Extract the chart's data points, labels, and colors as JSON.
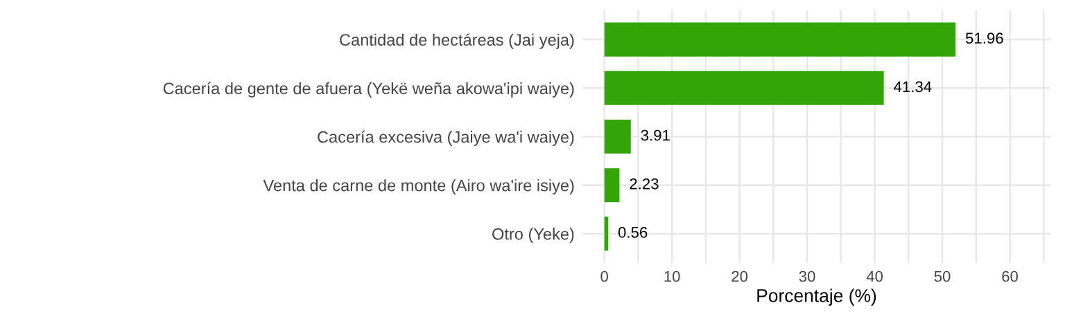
{
  "chart_data": {
    "type": "bar",
    "orientation": "horizontal",
    "xlabel": "Porcentaje (%)",
    "categories": [
      "Cantidad de hectáreas (Jai yeja)",
      "Cacería de gente de afuera (Yekë weña akowa'ipi waiye)",
      "Cacería excesiva (Jaiye wa'i waiye)",
      "Venta de carne de monte (Airo wa'ire isiye)",
      "Otro (Yeke)"
    ],
    "values": [
      51.96,
      41.34,
      3.91,
      2.23,
      0.56
    ],
    "color": "#33a506",
    "data_labels": true,
    "xlim": [
      -3.25,
      66
    ],
    "xticks": [
      0,
      {
        "value": 5,
        "label": null
      },
      10,
      {
        "value": 15,
        "label": null
      },
      20,
      {
        "value": 25,
        "label": null
      },
      30,
      {
        "value": 35,
        "label": null
      },
      40,
      {
        "value": 45,
        "label": null
      },
      50,
      {
        "value": 55,
        "label": null
      },
      60,
      {
        "value": 65,
        "label": null
      }
    ],
    "grid": true
  }
}
